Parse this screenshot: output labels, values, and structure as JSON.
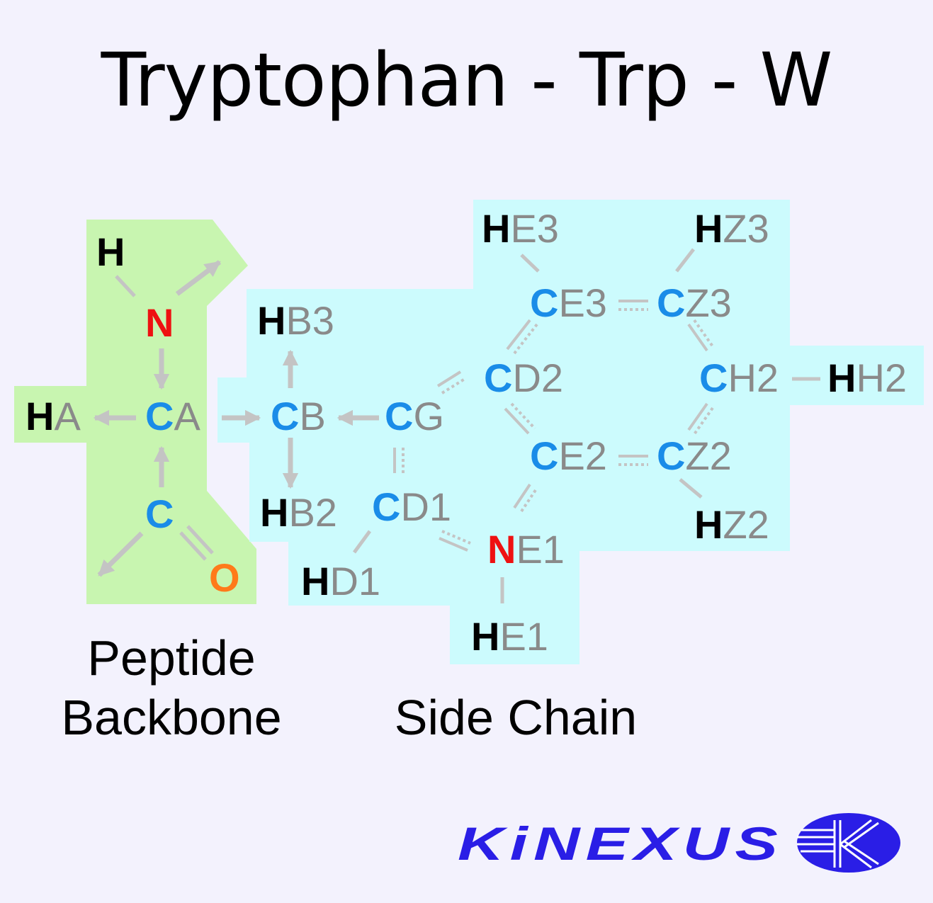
{
  "title": "Tryptophan - Trp - W",
  "regions": {
    "backbone_line1": "Peptide",
    "backbone_line2": "Backbone",
    "side_chain": "Side Chain"
  },
  "colors": {
    "backbone_bg": "#c8f5b0",
    "sidechain_bg": "#ccfbfd",
    "carbon": "#1a8ce8",
    "nitrogen": "#ee1111",
    "oxygen": "#ff7a1a",
    "hydrogen": "#000000",
    "locant": "#8a8a8a",
    "bond": "#c4c4c4",
    "logo": "#2a1ee6"
  },
  "atoms": {
    "H": {
      "el": "H",
      "loc": ""
    },
    "N": {
      "el": "N",
      "loc": ""
    },
    "HA": {
      "el": "H",
      "loc": "A"
    },
    "CA": {
      "el": "C",
      "loc": "A"
    },
    "C": {
      "el": "C",
      "loc": ""
    },
    "O": {
      "el": "O",
      "loc": ""
    },
    "HB3": {
      "el": "H",
      "loc": "B3"
    },
    "CB": {
      "el": "C",
      "loc": "B"
    },
    "HB2": {
      "el": "H",
      "loc": "B2"
    },
    "CG": {
      "el": "C",
      "loc": "G"
    },
    "CD1": {
      "el": "C",
      "loc": "D1"
    },
    "HD1": {
      "el": "H",
      "loc": "D1"
    },
    "NE1": {
      "el": "N",
      "loc": "E1"
    },
    "HE1": {
      "el": "H",
      "loc": "E1"
    },
    "CD2": {
      "el": "C",
      "loc": "D2"
    },
    "CE2": {
      "el": "C",
      "loc": "E2"
    },
    "CE3": {
      "el": "C",
      "loc": "E3"
    },
    "HE3": {
      "el": "H",
      "loc": "E3"
    },
    "CZ3": {
      "el": "C",
      "loc": "Z3"
    },
    "HZ3": {
      "el": "H",
      "loc": "Z3"
    },
    "CH2": {
      "el": "C",
      "loc": "H2"
    },
    "HH2": {
      "el": "H",
      "loc": "H2"
    },
    "CZ2": {
      "el": "C",
      "loc": "Z2"
    },
    "HZ2": {
      "el": "H",
      "loc": "Z2"
    }
  },
  "logo": {
    "text": "KiNEXUS",
    "emblem": "kinexus-k-emblem-icon"
  }
}
